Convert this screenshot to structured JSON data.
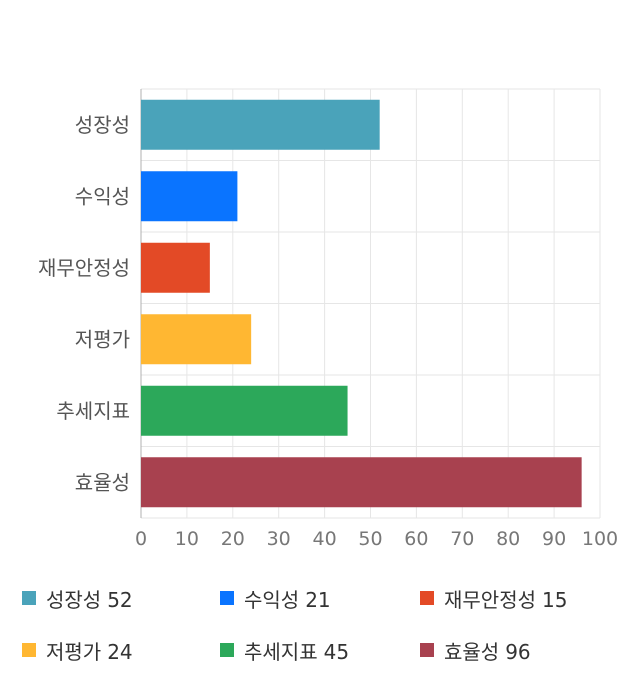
{
  "chart_data": {
    "type": "bar",
    "orientation": "horizontal",
    "categories": [
      "성장성",
      "수익성",
      "재무안정성",
      "저평가",
      "추세지표",
      "효율성"
    ],
    "values": [
      52,
      21,
      15,
      24,
      45,
      96
    ],
    "colors": [
      "#4aa3ba",
      "#0a74ff",
      "#e34a26",
      "#ffb732",
      "#2ca85a",
      "#a8414f"
    ],
    "xlim": [
      0,
      100
    ],
    "xticks": [
      0,
      10,
      20,
      30,
      40,
      50,
      60,
      70,
      80,
      90,
      100
    ],
    "grid": true,
    "legend_position": "bottom"
  },
  "legend": [
    {
      "label": "성장성",
      "value": "52"
    },
    {
      "label": "수익성",
      "value": "21"
    },
    {
      "label": "재무안정성",
      "value": "15"
    },
    {
      "label": "저평가",
      "value": "24"
    },
    {
      "label": "추세지표",
      "value": "45"
    },
    {
      "label": "효율성",
      "value": "96"
    }
  ]
}
